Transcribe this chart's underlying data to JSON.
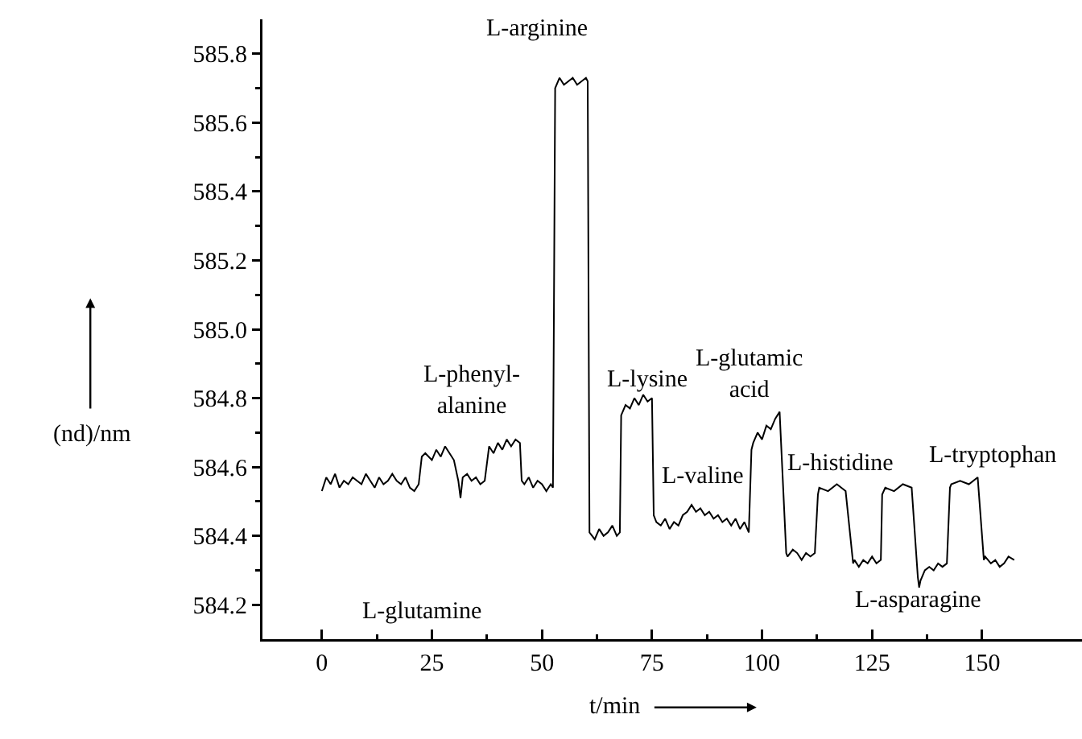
{
  "chart_data": {
    "type": "line",
    "xlabel": "t/min",
    "ylabel": "(nd)/nm",
    "xlim": [
      -13.5,
      172.7
    ],
    "ylim": [
      584.1,
      585.9
    ],
    "xticks": [
      0,
      25,
      50,
      75,
      100,
      125,
      150
    ],
    "yticks": [
      584.2,
      584.4,
      584.6,
      584.8,
      {
        "value": 585,
        "label": "585.0"
      },
      585.2,
      585.4,
      585.6,
      585.8
    ],
    "grid": false,
    "marker": "none",
    "line_style": "solid",
    "series": [
      {
        "color": "#000000",
        "x": [
          0,
          1,
          2,
          3,
          4,
          5,
          6,
          7,
          8,
          9,
          10,
          11,
          12,
          13,
          14,
          15,
          16,
          17,
          18,
          19,
          20,
          21,
          22,
          22.7,
          23.5,
          25,
          26,
          27,
          28,
          29,
          30,
          31,
          31.5,
          32,
          33,
          34,
          35,
          36,
          37,
          38,
          39,
          40,
          41,
          42,
          43,
          44,
          45,
          45.4,
          46,
          47,
          48,
          49,
          50,
          51,
          52,
          52.5,
          53,
          54,
          55,
          56,
          57,
          58,
          59,
          60,
          60.4,
          60.8,
          62,
          63,
          64,
          65,
          66,
          67,
          67.7,
          68,
          69,
          70,
          71,
          72,
          73,
          74,
          75,
          75.4,
          76,
          77,
          78,
          79,
          80,
          81,
          82,
          83,
          84,
          85,
          86,
          87,
          88,
          89,
          90,
          91,
          92,
          93,
          94,
          95,
          96,
          97,
          97.6,
          98,
          99,
          100,
          101,
          102,
          103,
          104,
          105.5,
          105.8,
          107,
          108,
          109,
          110,
          111,
          112,
          112.7,
          113,
          115,
          117,
          119,
          120.7,
          121,
          122,
          123,
          124,
          125,
          126,
          127,
          127.3,
          128,
          130,
          132,
          134,
          135.4,
          135.7,
          136,
          137,
          138,
          139,
          140,
          141,
          142,
          142.7,
          143,
          145,
          147,
          149,
          150.4,
          150.7,
          152,
          153,
          154,
          155,
          156,
          157.3
        ],
        "values": [
          584.53,
          584.57,
          584.55,
          584.58,
          584.54,
          584.56,
          584.55,
          584.57,
          584.56,
          584.55,
          584.58,
          584.56,
          584.54,
          584.57,
          584.55,
          584.56,
          584.58,
          584.56,
          584.55,
          584.57,
          584.54,
          584.53,
          584.55,
          584.63,
          584.64,
          584.62,
          584.65,
          584.63,
          584.66,
          584.64,
          584.62,
          584.56,
          584.51,
          584.57,
          584.58,
          584.56,
          584.57,
          584.55,
          584.56,
          584.66,
          584.64,
          584.67,
          584.65,
          584.68,
          584.66,
          584.68,
          584.67,
          584.56,
          584.55,
          584.57,
          584.54,
          584.56,
          584.55,
          584.53,
          584.55,
          584.54,
          585.7,
          585.73,
          585.71,
          585.72,
          585.73,
          585.71,
          585.72,
          585.73,
          585.72,
          584.41,
          584.39,
          584.42,
          584.4,
          584.41,
          584.43,
          584.4,
          584.41,
          584.75,
          584.78,
          584.77,
          584.8,
          584.78,
          584.81,
          584.79,
          584.8,
          584.46,
          584.44,
          584.43,
          584.45,
          584.42,
          584.44,
          584.43,
          584.46,
          584.47,
          584.49,
          584.47,
          584.48,
          584.46,
          584.47,
          584.45,
          584.46,
          584.44,
          584.45,
          584.43,
          584.45,
          584.42,
          584.44,
          584.41,
          584.65,
          584.67,
          584.7,
          584.68,
          584.72,
          584.71,
          584.74,
          584.76,
          584.35,
          584.34,
          584.36,
          584.35,
          584.33,
          584.35,
          584.34,
          584.35,
          584.52,
          584.54,
          584.53,
          584.55,
          584.53,
          584.32,
          584.33,
          584.31,
          584.33,
          584.32,
          584.34,
          584.32,
          584.33,
          584.52,
          584.54,
          584.53,
          584.55,
          584.54,
          584.28,
          584.25,
          584.27,
          584.3,
          584.31,
          584.3,
          584.32,
          584.31,
          584.32,
          584.54,
          584.55,
          584.56,
          584.55,
          584.57,
          584.33,
          584.34,
          584.32,
          584.33,
          584.31,
          584.32,
          584.34,
          584.33
        ]
      }
    ],
    "annotations": [
      "L-glutamine",
      "L-phenyl-\nalanine",
      "L-arginine",
      "L-lysine",
      "L-valine",
      "L-glutamic\nacid",
      "L-histidine",
      "L-asparagine",
      "L-tryptophan"
    ]
  }
}
